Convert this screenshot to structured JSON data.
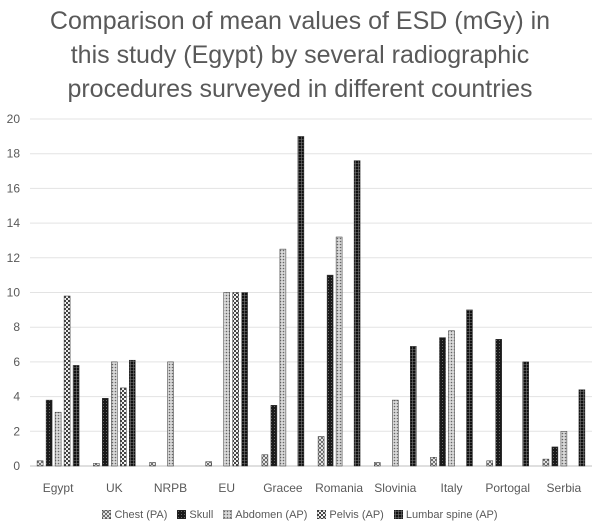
{
  "chart_data": {
    "type": "bar",
    "title_lines": [
      "Comparison of mean values of ESD (mGy) in",
      "this study (Egypt) by several radiographic",
      "procedures surveyed in different countries"
    ],
    "title": "Comparison of mean values of ESD (mGy) in this study (Egypt) by several radiographic procedures surveyed in different countries",
    "xlabel": "",
    "ylabel": "",
    "ylim": [
      0,
      20
    ],
    "yticks": [
      0,
      2,
      4,
      6,
      8,
      10,
      12,
      14,
      16,
      18,
      20
    ],
    "grid": true,
    "legend_position": "bottom",
    "categories": [
      "Egypt",
      "UK",
      "NRPB",
      "EU",
      "Gracee",
      "Romania",
      "Slovinia",
      "Italy",
      "Portogal",
      "Serbia"
    ],
    "series": [
      {
        "name": "Chest (PA)",
        "pattern": "cross-light",
        "values": [
          0.3,
          0.15,
          0.2,
          0.25,
          0.65,
          1.7,
          0.2,
          0.5,
          0.3,
          0.4
        ]
      },
      {
        "name": "Skull",
        "pattern": "dark-solid",
        "values": [
          3.8,
          3.9,
          0,
          0,
          3.5,
          11.0,
          0,
          7.4,
          7.3,
          1.1
        ]
      },
      {
        "name": "Abdomen (AP)",
        "pattern": "dotted",
        "values": [
          3.1,
          6.0,
          6.0,
          10.0,
          12.5,
          13.2,
          3.8,
          7.8,
          0,
          2.0
        ]
      },
      {
        "name": "Pelvis (AP)",
        "pattern": "checker",
        "values": [
          9.8,
          4.5,
          0,
          10.0,
          0,
          0,
          0,
          0,
          0,
          0
        ]
      },
      {
        "name": "Lumbar spine (AP)",
        "pattern": "dark-grid",
        "values": [
          5.8,
          6.1,
          0,
          10.0,
          19.0,
          17.6,
          6.9,
          9.0,
          6.0,
          4.4
        ]
      }
    ]
  }
}
